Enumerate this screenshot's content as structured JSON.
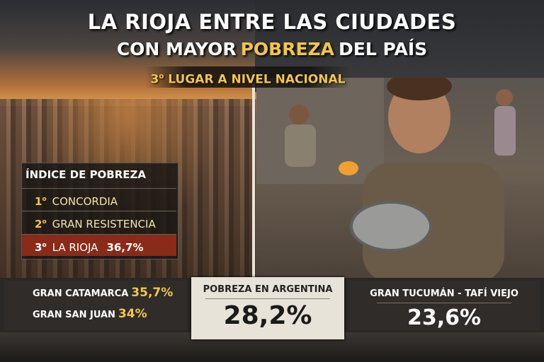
{
  "title": {
    "line1": "LA RIOJA ENTRE LAS CIUDADES",
    "line2": [
      "CON MAYOR",
      "POBREZA",
      "DEL PAÍS"
    ]
  },
  "subtitle": {
    "rank": "3",
    "ordinal": "o",
    "text": "LUGAR A NIVEL NACIONAL"
  },
  "ranking": {
    "title": "ÍNDICE DE POBREZA",
    "items": [
      {
        "rank": "1",
        "ordinal": "o",
        "name": "CONCORDIA"
      },
      {
        "rank": "2",
        "ordinal": "o",
        "name": "GRAN RESISTENCIA"
      },
      {
        "rank": "3",
        "ordinal": "o",
        "name": "LA RIOJA",
        "value": "36,7%"
      }
    ]
  },
  "bottom": {
    "left": [
      {
        "name": "GRAN CATAMARCA",
        "value": "35,7%"
      },
      {
        "name": "GRAN SAN JUAN",
        "value": "34%"
      }
    ],
    "center": {
      "label": "POBREZA EN ARGENTINA",
      "value": "28,2%"
    },
    "right": {
      "label": "GRAN TUCUMÁN - TAFÍ VIEJO",
      "value": "23,6%"
    }
  }
}
